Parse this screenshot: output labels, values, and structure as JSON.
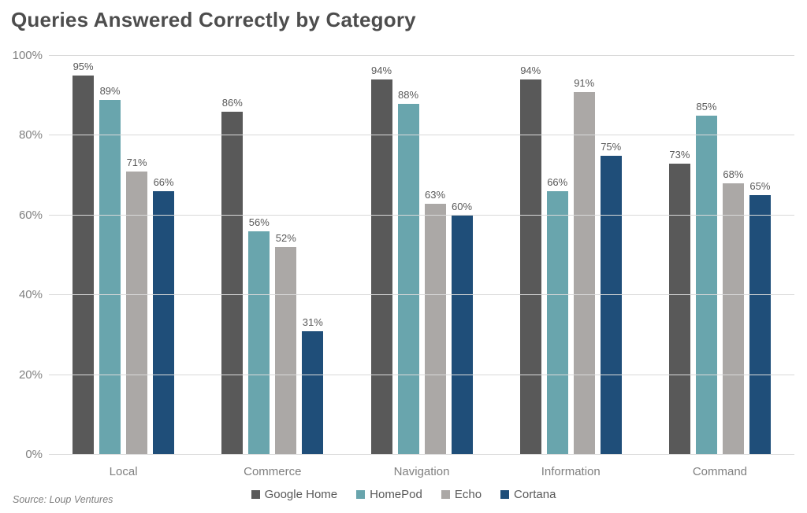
{
  "title": "Queries Answered Correctly by Category",
  "source": "Source: Loup Ventures",
  "chart_data": {
    "type": "bar",
    "title": "Queries Answered Correctly by Category",
    "categories": [
      "Local",
      "Commerce",
      "Navigation",
      "Information",
      "Command"
    ],
    "series": [
      {
        "name": "Google Home",
        "color": "#595959",
        "values": [
          95,
          86,
          94,
          94,
          73
        ]
      },
      {
        "name": "HomePod",
        "color": "#69A5AD",
        "values": [
          89,
          56,
          88,
          66,
          85
        ]
      },
      {
        "name": "Echo",
        "color": "#ABA8A6",
        "values": [
          71,
          52,
          63,
          91,
          68
        ]
      },
      {
        "name": "Cortana",
        "color": "#1F4E79",
        "values": [
          66,
          31,
          60,
          75,
          65
        ]
      }
    ],
    "xlabel": "",
    "ylabel": "",
    "ylim": [
      0,
      100
    ],
    "yticks": [
      0,
      20,
      40,
      60,
      80,
      100
    ],
    "ytick_labels": [
      "0%",
      "20%",
      "40%",
      "60%",
      "80%",
      "100%"
    ],
    "value_suffix": "%",
    "grid": true,
    "gridline_color": "#d9d9d9",
    "legend_position": "bottom",
    "source": "Source: Loup Ventures"
  }
}
